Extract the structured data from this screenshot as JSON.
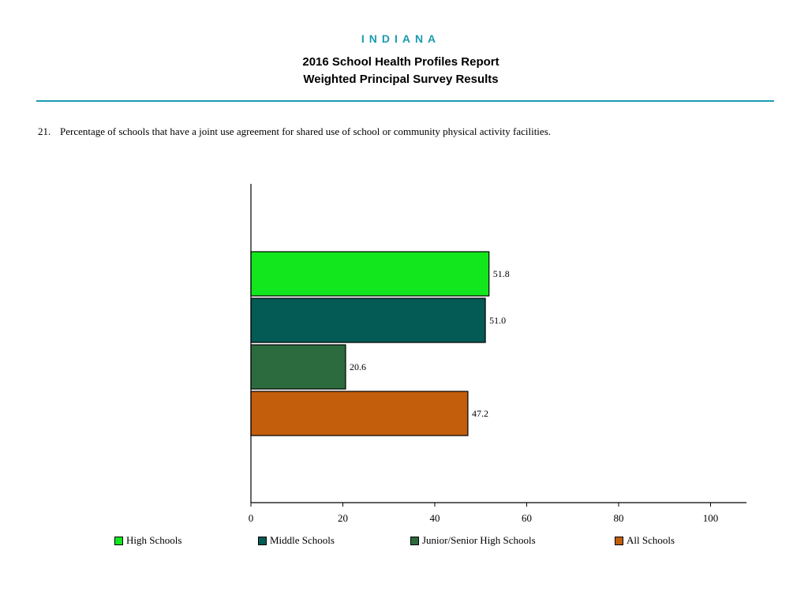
{
  "header": {
    "state": "INDIANA",
    "title_line1": "2016 School Health Profiles Report",
    "title_line2": "Weighted Principal Survey Results"
  },
  "question": {
    "number": "21.",
    "text": "Percentage of schools that have a joint use agreement for shared use of school or community physical activity facilities."
  },
  "chart_data": {
    "type": "bar",
    "orientation": "horizontal",
    "categories": [
      "High Schools",
      "Middle Schools",
      "Junior/Senior High Schools",
      "All Schools"
    ],
    "values": [
      51.8,
      51.0,
      20.6,
      47.2
    ],
    "value_labels": [
      "51.8",
      "51.0",
      "20.6",
      "47.2"
    ],
    "colors": [
      "#12e61c",
      "#045a55",
      "#2b6b3d",
      "#c25e0c"
    ],
    "xlim": [
      0,
      100
    ],
    "xticks": [
      0,
      20,
      40,
      60,
      80,
      100
    ],
    "xtick_labels": [
      "0",
      "20",
      "40",
      "60",
      "80",
      "100"
    ],
    "legend_position": "bottom",
    "grid": false
  }
}
